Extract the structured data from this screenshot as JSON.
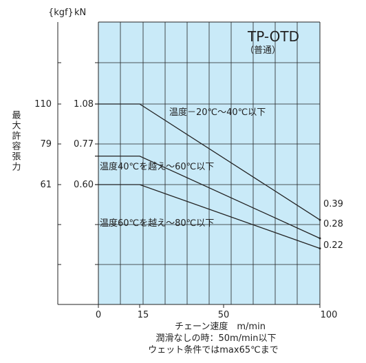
{
  "chart_data": {
    "type": "line",
    "title": "TP-OTD",
    "subtitle": "（普通）",
    "ylabel": "最大許容張力",
    "y_units": [
      "{kgf}",
      "kN"
    ],
    "xlabel": "チェーン速度　m/min",
    "x_ticks": [
      "0",
      "15",
      "50",
      "100"
    ],
    "xlim": [
      0,
      100
    ],
    "y_kgf_ticks": [
      "110",
      "79",
      "61"
    ],
    "y_kn_ticks": [
      "1.08",
      "0.77",
      "0.60"
    ],
    "notes": [
      "潤滑なしの時：50m/min以下",
      "ウェット条件ではmax65℃まで"
    ],
    "grid": true,
    "background_color": "#c9eaf8",
    "series": [
      {
        "name": "温度－20℃～40℃以下",
        "x": [
          0,
          15,
          100
        ],
        "y": [
          1.08,
          1.08,
          0.39
        ],
        "end_label": "0.39"
      },
      {
        "name": "温度40℃を越え～60℃以下",
        "x": [
          0,
          15,
          100
        ],
        "y": [
          0.77,
          0.77,
          0.28
        ],
        "end_label": "0.28"
      },
      {
        "name": "温度60℃を越え～80℃以下",
        "x": [
          0,
          15,
          100
        ],
        "y": [
          0.6,
          0.6,
          0.22
        ],
        "end_label": "0.22"
      }
    ]
  }
}
